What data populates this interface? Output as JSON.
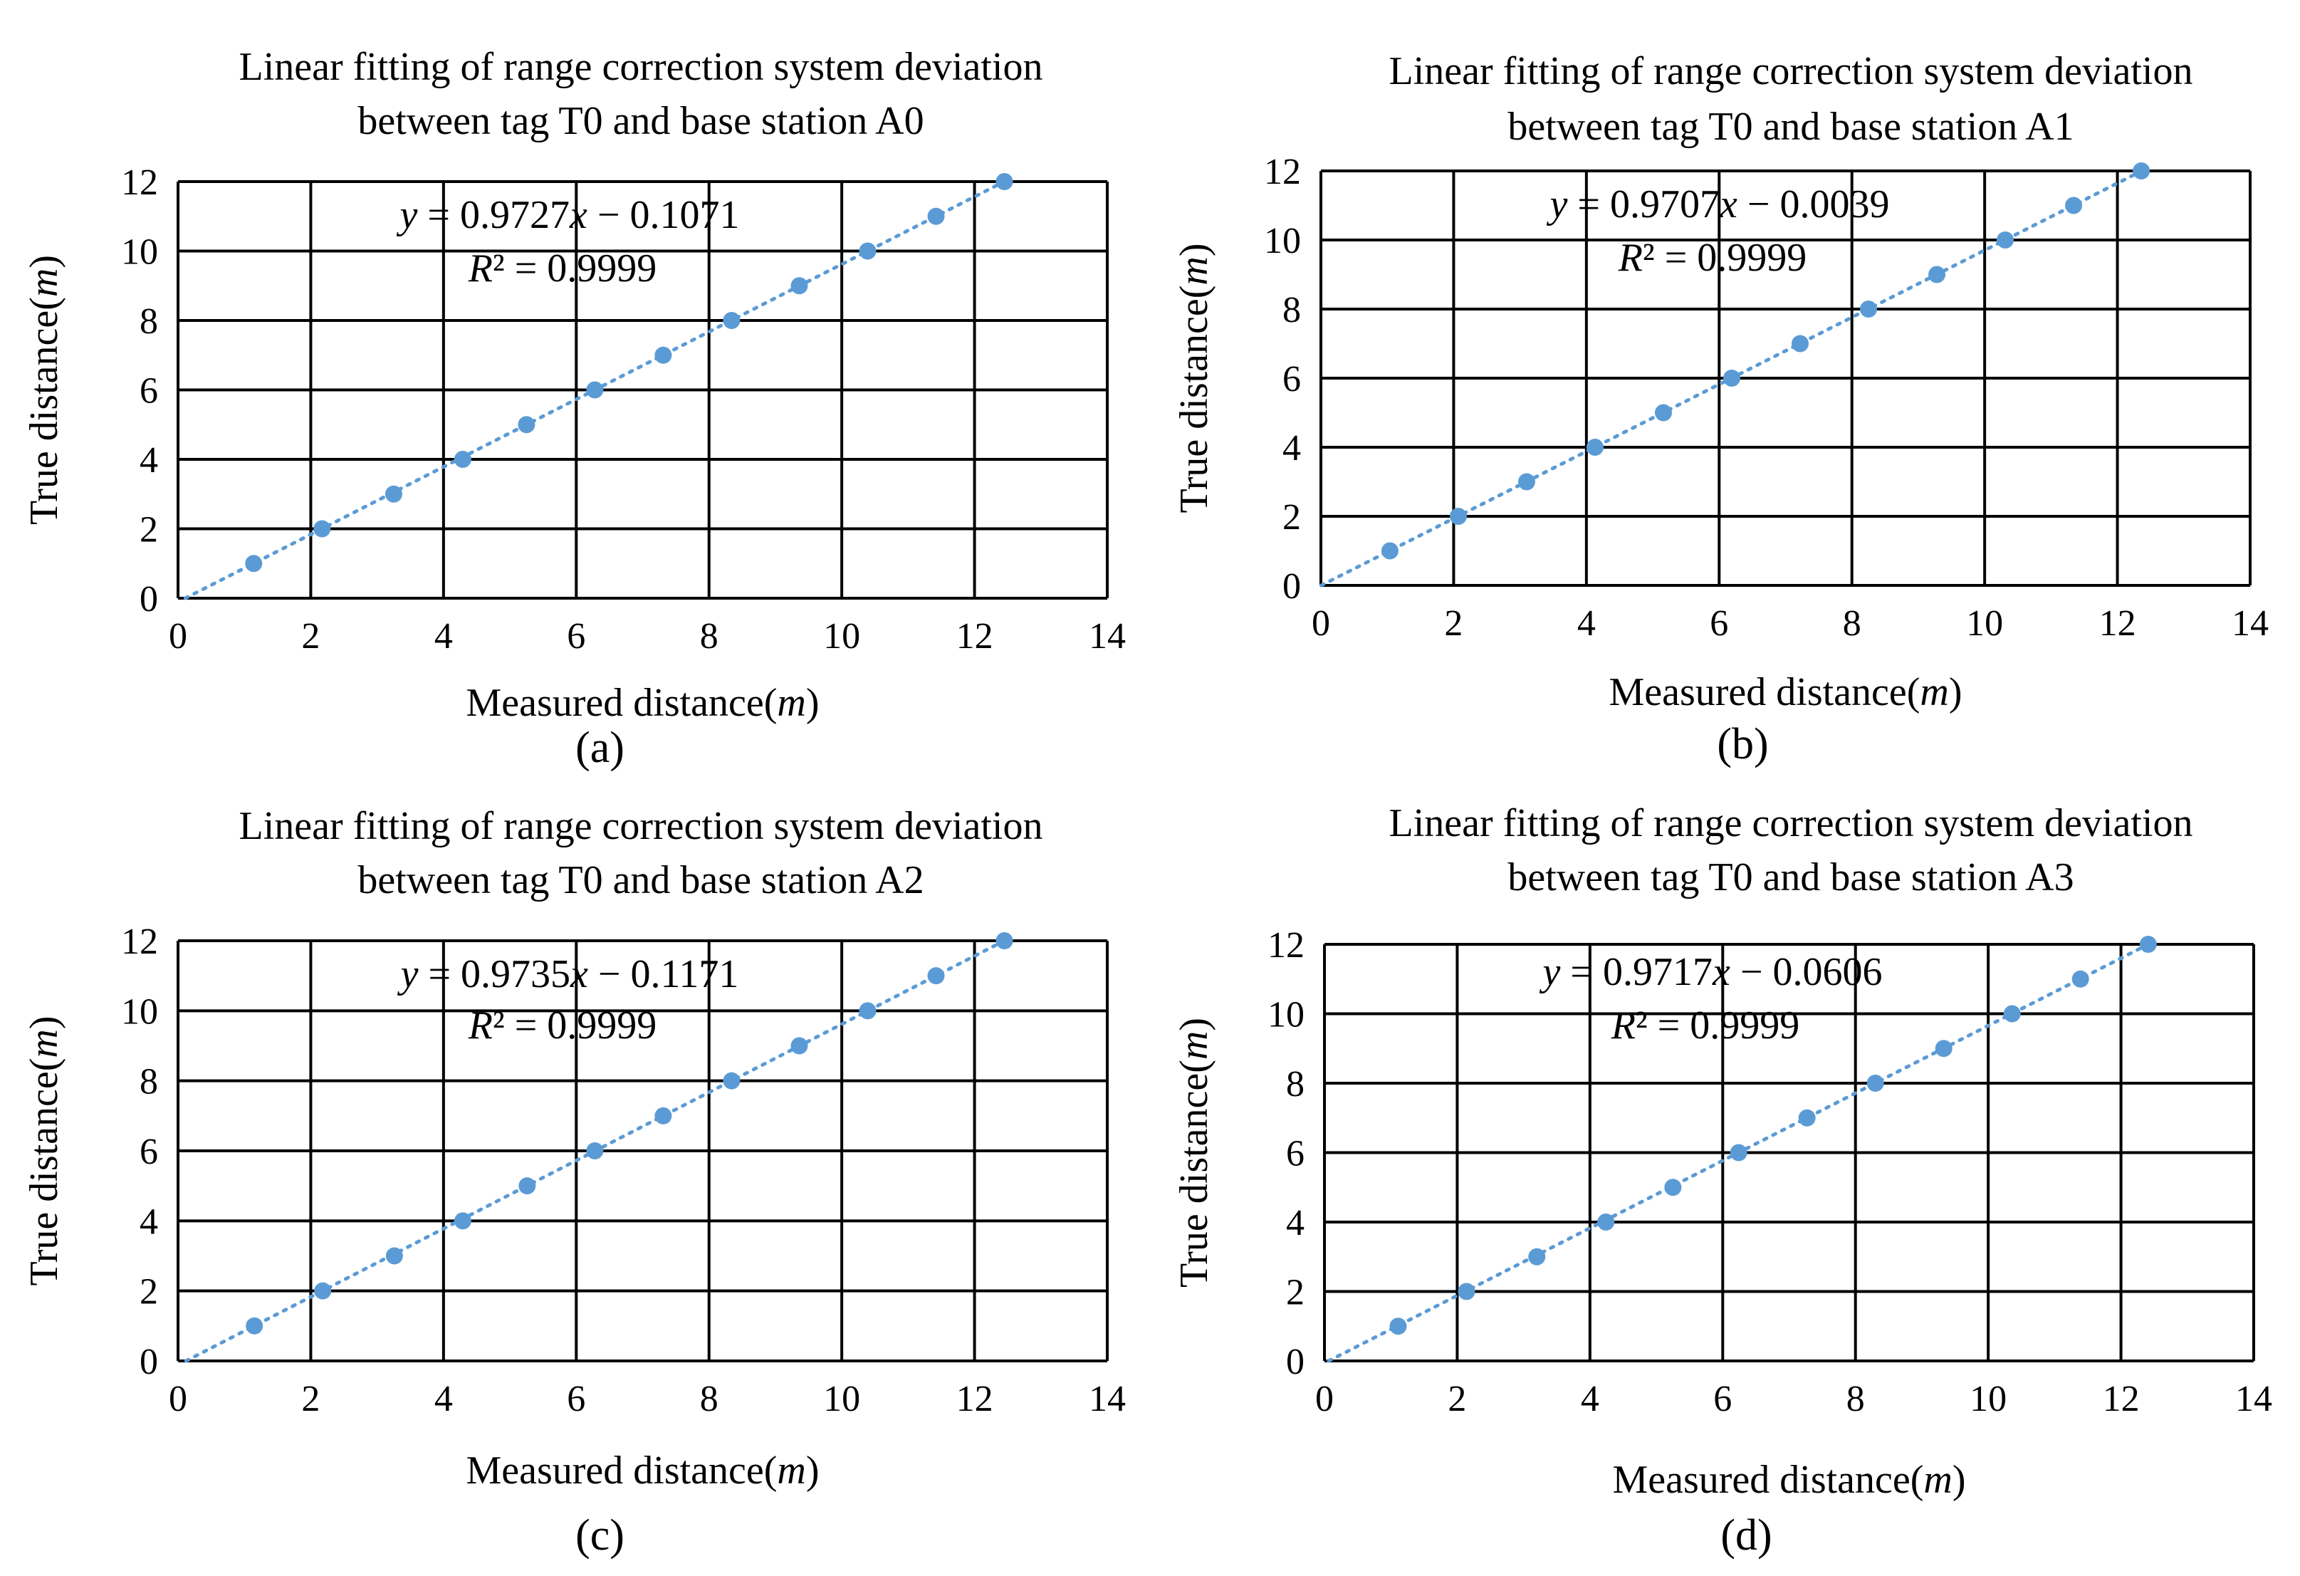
{
  "chart_data": [
    {
      "type": "scatter",
      "caption": "(a)",
      "title_lines": [
        "Linear fitting of range correction system  deviation",
        "between tag T0 and base station A0"
      ],
      "xlabel": "Measured distance(m)",
      "ylabel": "True distance(m)",
      "xlim": [
        0,
        14
      ],
      "ylim": [
        0,
        12
      ],
      "xticks": [
        "0",
        "2",
        "4",
        "6",
        "8",
        "10",
        "12",
        "14"
      ],
      "yticks": [
        "0",
        "2",
        "4",
        "6",
        "8",
        "10",
        "12"
      ],
      "grid": true,
      "equation": "y = 0.9727x − 0.1071",
      "r2": "R² = 0.9999",
      "trendline": {
        "slope": 0.9727,
        "intercept": -0.1071,
        "style": "dotted"
      },
      "series": [
        {
          "x": [
            1.14,
            2.17,
            3.25,
            4.29,
            5.25,
            6.28,
            7.31,
            8.34,
            9.36,
            10.39,
            11.42,
            12.45
          ],
          "y": [
            1,
            2,
            3,
            4,
            5,
            6,
            7,
            8,
            9,
            10,
            11,
            12
          ]
        }
      ]
    },
    {
      "type": "scatter",
      "caption": "(b)",
      "title_lines": [
        "Linear fitting of range correction system  deviation",
        "between tag T0 and base station A1"
      ],
      "xlabel": "Measured distance(m)",
      "ylabel": "True distance(m)",
      "xlim": [
        0,
        14
      ],
      "ylim": [
        0,
        12
      ],
      "xticks": [
        "0",
        "2",
        "4",
        "6",
        "8",
        "10",
        "12",
        "14"
      ],
      "yticks": [
        "0",
        "2",
        "4",
        "6",
        "8",
        "10",
        "12"
      ],
      "grid": true,
      "equation": "y = 0.9707x − 0.0039",
      "r2": "R² = 0.9999",
      "trendline": {
        "slope": 0.9707,
        "intercept": -0.0039,
        "style": "dotted"
      },
      "series": [
        {
          "x": [
            1.04,
            2.07,
            3.1,
            4.13,
            5.16,
            6.19,
            7.22,
            8.25,
            9.28,
            10.31,
            11.34,
            12.36
          ],
          "y": [
            1,
            2,
            3,
            4,
            5,
            6,
            7,
            8,
            9,
            10,
            11,
            12
          ]
        }
      ]
    },
    {
      "type": "scatter",
      "caption": "(c)",
      "title_lines": [
        "Linear fitting of range correction system  deviation",
        "between tag T0 and base station A2"
      ],
      "xlabel": "Measured distance(m)",
      "ylabel": "True distance(m)",
      "xlim": [
        0,
        14
      ],
      "ylim": [
        0,
        12
      ],
      "xticks": [
        "0",
        "2",
        "4",
        "6",
        "8",
        "10",
        "12",
        "14"
      ],
      "yticks": [
        "0",
        "2",
        "4",
        "6",
        "8",
        "10",
        "12"
      ],
      "grid": true,
      "equation": "y = 0.9735x − 0.1171",
      "r2": "R² = 0.9999",
      "trendline": {
        "slope": 0.9735,
        "intercept": -0.1171,
        "style": "dotted"
      },
      "series": [
        {
          "x": [
            1.15,
            2.18,
            3.26,
            4.29,
            5.26,
            6.28,
            7.31,
            8.34,
            9.36,
            10.39,
            11.42,
            12.45
          ],
          "y": [
            1,
            2,
            3,
            4,
            5,
            6,
            7,
            8,
            9,
            10,
            11,
            12
          ]
        }
      ]
    },
    {
      "type": "scatter",
      "caption": "(d)",
      "title_lines": [
        "Linear fitting of range correction system  deviation",
        "between tag T0 and base station A3"
      ],
      "xlabel": "Measured distance(m)",
      "ylabel": "True distance(m)",
      "xlim": [
        0,
        14
      ],
      "ylim": [
        0,
        12
      ],
      "xticks": [
        "0",
        "2",
        "4",
        "6",
        "8",
        "10",
        "12",
        "14"
      ],
      "yticks": [
        "0",
        "2",
        "4",
        "6",
        "8",
        "10",
        "12"
      ],
      "grid": true,
      "equation": "y = 0.9717x − 0.0606",
      "r2": "R² = 0.9999",
      "trendline": {
        "slope": 0.9717,
        "intercept": -0.0606,
        "style": "dotted"
      },
      "series": [
        {
          "x": [
            1.11,
            2.14,
            3.2,
            4.24,
            5.25,
            6.24,
            7.27,
            8.3,
            9.33,
            10.36,
            11.39,
            12.41
          ],
          "y": [
            1,
            2,
            3,
            4,
            5,
            6,
            7,
            8,
            9,
            10,
            11,
            12
          ]
        }
      ]
    }
  ],
  "colors": {
    "series": "#5b9bd5",
    "grid": "#000000",
    "text": "#000000"
  }
}
